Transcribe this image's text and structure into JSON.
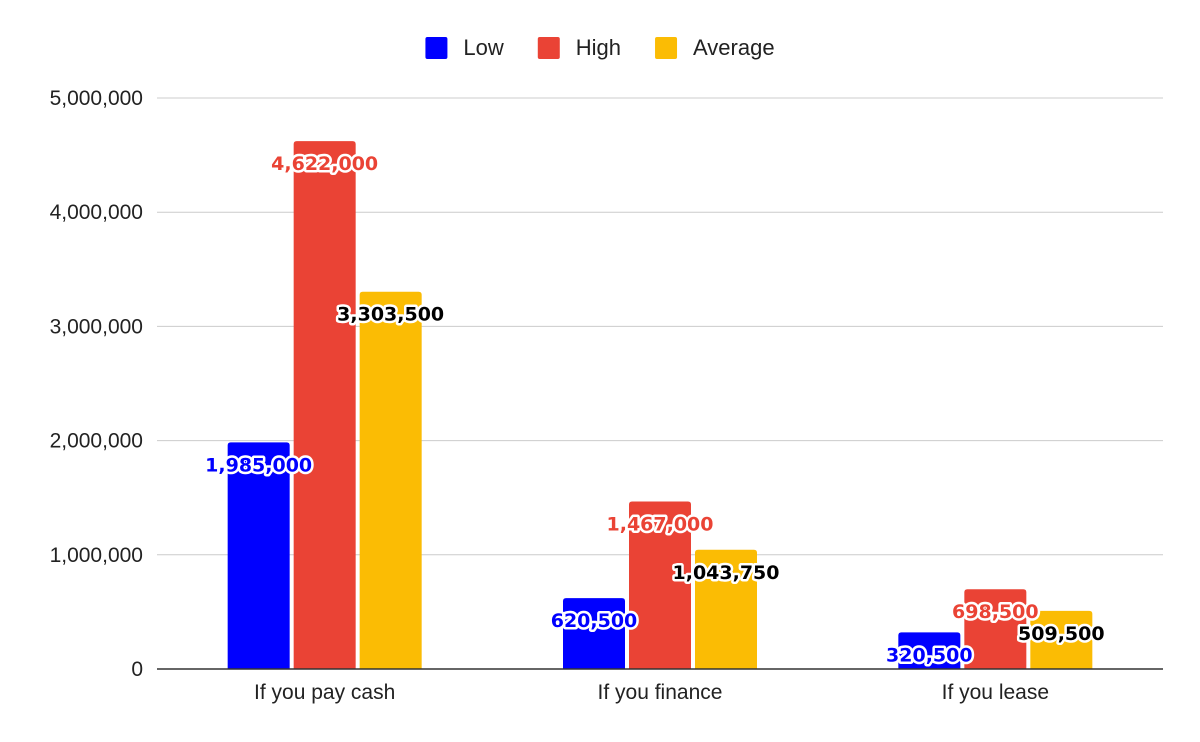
{
  "chart_data": {
    "type": "bar",
    "title": "",
    "xlabel": "",
    "ylabel": "",
    "categories": [
      "If you pay cash",
      "If you finance",
      "If you lease"
    ],
    "series": [
      {
        "name": "Low",
        "color": "#0000ff",
        "values": [
          1985000,
          620500,
          320500
        ],
        "labels": [
          "1,985,000",
          "620,500",
          "320,500"
        ]
      },
      {
        "name": "High",
        "color": "#ea4335",
        "values": [
          4622000,
          1467000,
          698500
        ],
        "labels": [
          "4,622,000",
          "1,467,000",
          "698,500"
        ]
      },
      {
        "name": "Average",
        "color": "#fbbc04",
        "values": [
          3303500,
          1043750,
          509500
        ],
        "labels": [
          "3,303,500",
          "1,043,750",
          "509,500"
        ]
      }
    ],
    "ylim": [
      0,
      5000000
    ],
    "yticks": [
      0,
      1000000,
      2000000,
      3000000,
      4000000,
      5000000
    ],
    "ytick_labels": [
      "0",
      "1,000,000",
      "2,000,000",
      "3,000,000",
      "4,000,000",
      "5,000,000"
    ],
    "grid": true,
    "legend": "top-center",
    "label_text_colors": [
      "#0000ff",
      "#ea4335",
      "#000000"
    ]
  }
}
